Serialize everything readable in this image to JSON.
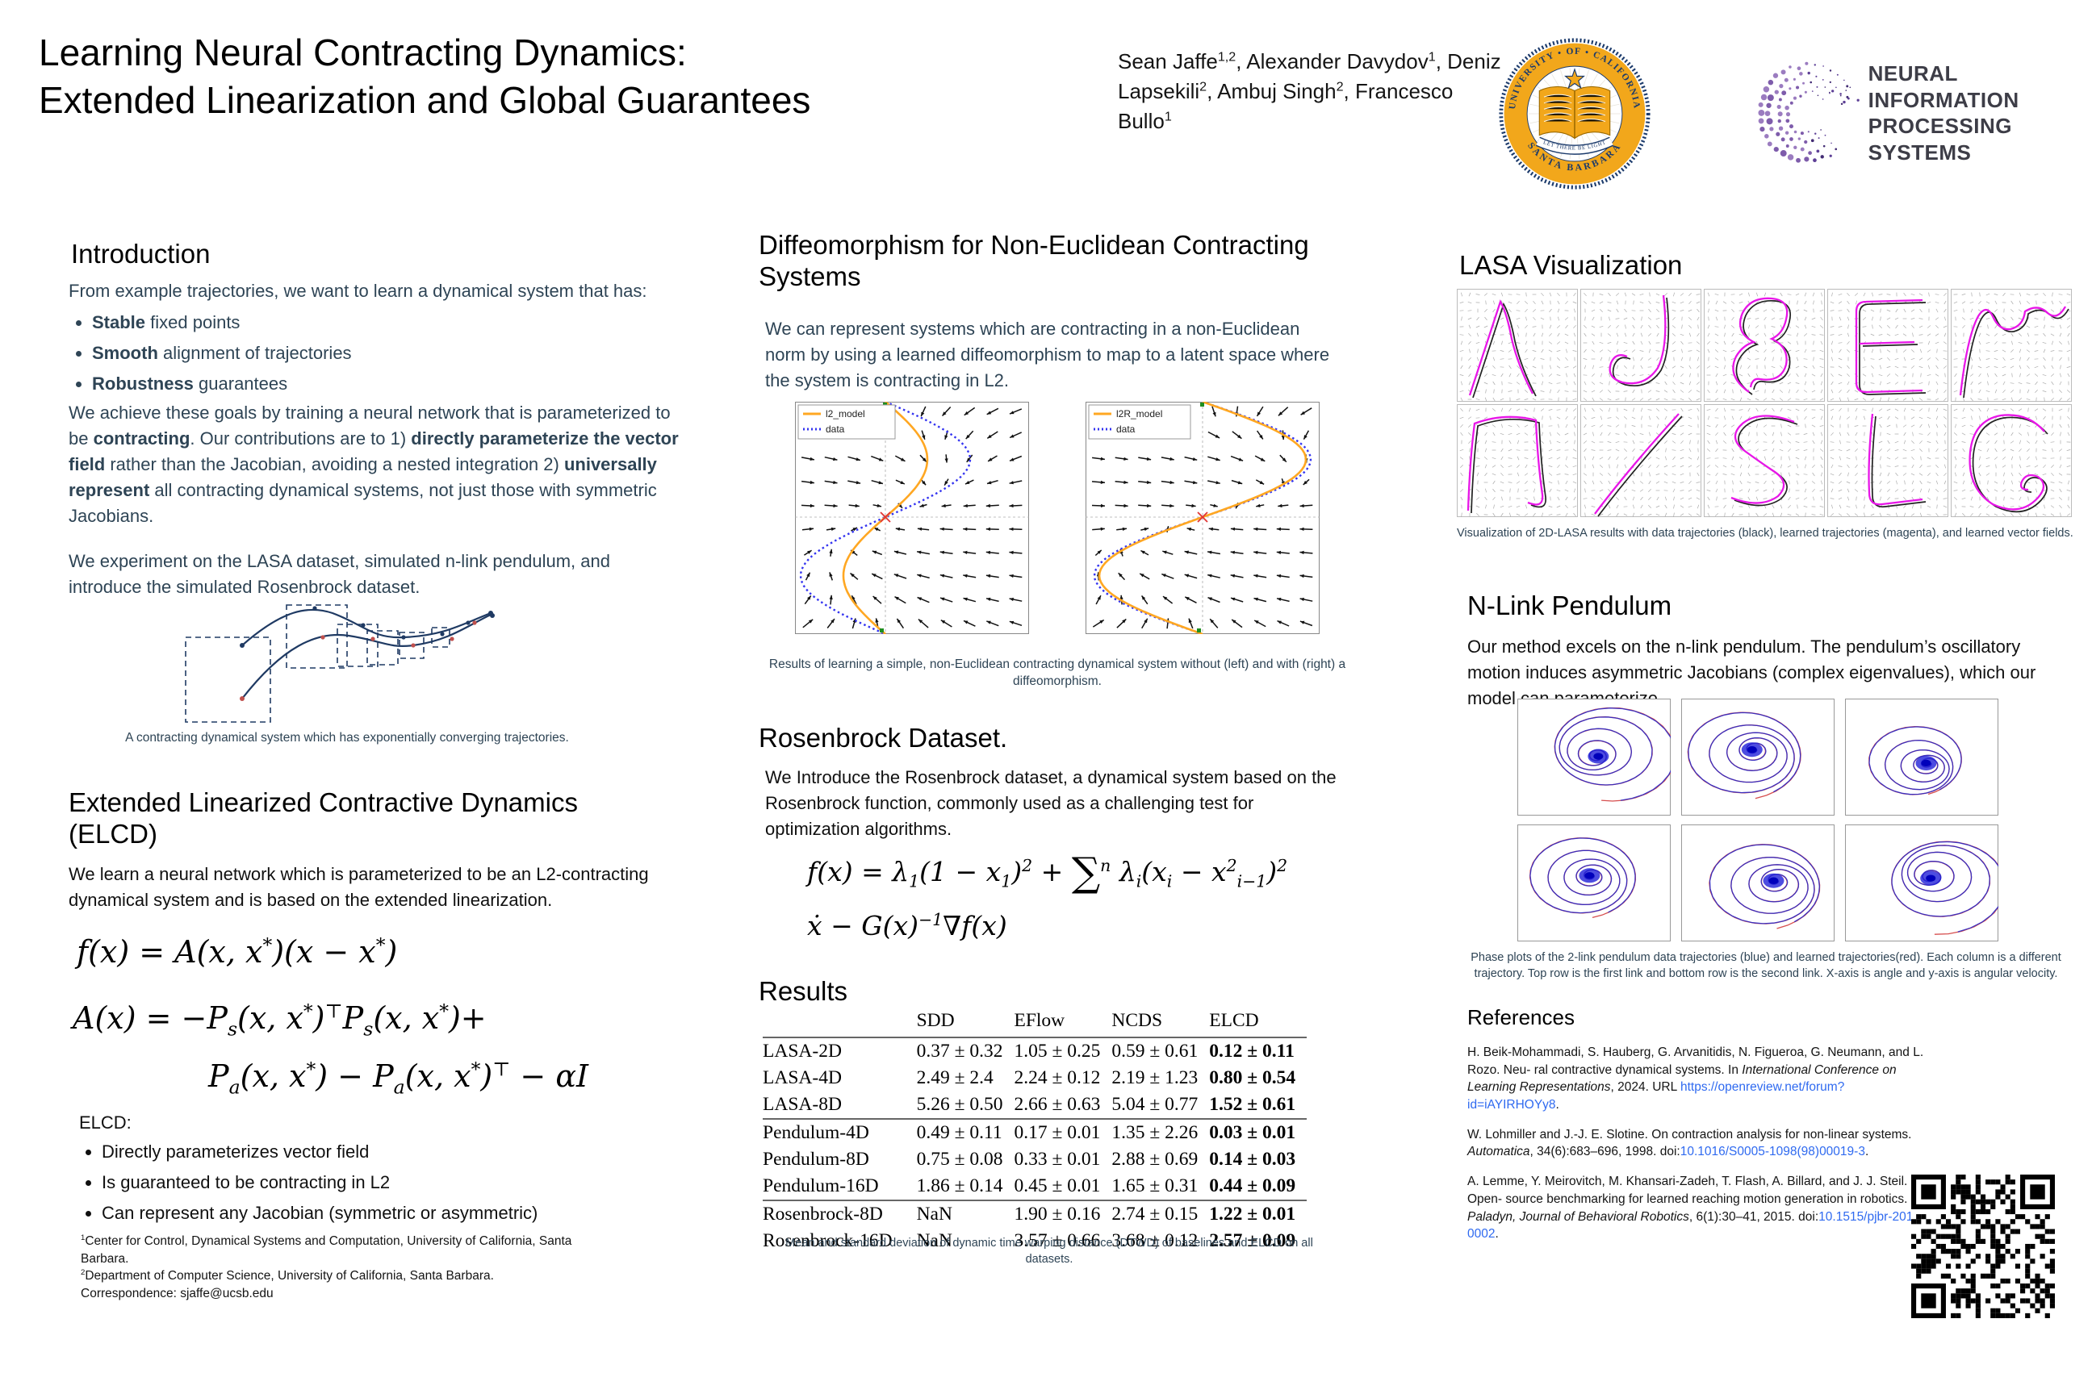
{
  "header": {
    "title1": "Learning Neural Contracting Dynamics:",
    "title2": "Extended Linearization and Global Guarantees",
    "authors": [
      {
        "t": "Sean Jaffe"
      },
      {
        "t": "1,2",
        "s": "sup"
      },
      {
        "t": ", Alexander Davydov"
      },
      {
        "t": "1",
        "s": "sup"
      },
      {
        "t": ", Deniz Lapsekili"
      },
      {
        "t": "2",
        "s": "sup"
      },
      {
        "t": ", Ambuj Singh"
      },
      {
        "t": "2",
        "s": "sup"
      },
      {
        "t": ", Francesco Bullo"
      },
      {
        "t": "1",
        "s": "sup"
      }
    ],
    "seal": {
      "top": "UNIVERSITY • OF • CALIFORNIA",
      "bottom": "SANTA BARBARA",
      "banner": "LET THERE BE LIGHT"
    },
    "neurips": {
      "line1": "NEURAL INFORMATION",
      "line2": "PROCESSING SYSTEMS"
    }
  },
  "colors": {
    "slate_text": "#2e4455",
    "orange_model": "#ffa722",
    "blue_data": "#3434f0",
    "magenta_traj": "#e816e8",
    "pend_blue": "#2929c8",
    "pend_red": "#d23b3b",
    "link_blue": "#2f6af0",
    "navy": "#1b3a6b",
    "gold": "#f2a71b",
    "neurips_purple": "#6b4fa1"
  },
  "intro": {
    "heading": "Introduction",
    "lead": "From example trajectories, we want to learn a dynamical system that has:",
    "bullets": [
      [
        {
          "t": "Stable",
          "s": "b"
        },
        {
          "t": " fixed points"
        }
      ],
      [
        {
          "t": "Smooth",
          "s": "b"
        },
        {
          "t": " alignment of trajectories"
        }
      ],
      [
        {
          "t": "Robustness",
          "s": "b"
        },
        {
          "t": " guarantees"
        }
      ]
    ],
    "para2": [
      {
        "t": "We achieve these goals by training a neural network that is parameterized to be "
      },
      {
        "t": "contracting",
        "s": "b"
      },
      {
        "t": ". Our contributions are to 1) "
      },
      {
        "t": "directly parameterize the vector field",
        "s": "b"
      },
      {
        "t": " rather than the Jacobian, avoiding a nested integration 2) "
      },
      {
        "t": "universally represent",
        "s": "b"
      },
      {
        "t": " all contracting dynamical systems, not just those with symmetric Jacobians."
      }
    ],
    "para3": "We experiment on the LASA dataset, simulated n-link pendulum, and introduce the simulated Rosenbrock dataset.",
    "fig_caption": "A contracting dynamical system which has exponentially converging trajectories."
  },
  "elcd": {
    "heading": "Extended Linearized Contractive Dynamics (ELCD)",
    "body": "We learn a neural network which is parameterized to be an L2-contracting dynamical system and is based on the extended linearization.",
    "eq_f": [
      {
        "t": "f(x) = A(x, x"
      },
      {
        "t": "*",
        "s": "sup"
      },
      {
        "t": ")(x − x"
      },
      {
        "t": "*",
        "s": "sup"
      },
      {
        "t": ")"
      }
    ],
    "eq_a1": [
      {
        "t": "A(x) = −P"
      },
      {
        "t": "s",
        "s": "sub"
      },
      {
        "t": "(x, x"
      },
      {
        "t": "*",
        "s": "sup"
      },
      {
        "t": ")"
      },
      {
        "t": "⊤",
        "s": "sup"
      },
      {
        "t": "P"
      },
      {
        "t": "s",
        "s": "sub"
      },
      {
        "t": "(x, x"
      },
      {
        "t": "*",
        "s": "sup"
      },
      {
        "t": ")+"
      }
    ],
    "eq_a2": [
      {
        "t": "P"
      },
      {
        "t": "a",
        "s": "sub"
      },
      {
        "t": "(x, x"
      },
      {
        "t": "*",
        "s": "sup"
      },
      {
        "t": ") − P"
      },
      {
        "t": "a",
        "s": "sub"
      },
      {
        "t": "(x, x"
      },
      {
        "t": "*",
        "s": "sup"
      },
      {
        "t": ")"
      },
      {
        "t": "⊤",
        "s": "sup"
      },
      {
        "t": " − αI"
      }
    ],
    "label": "ELCD:",
    "bullets": [
      "Directly parameterizes vector field",
      "Is guaranteed to be contracting in L2",
      "Can represent any Jacobian (symmetric or asymmetric)"
    ],
    "footnote1": [
      {
        "t": "1",
        "s": "sup"
      },
      {
        "t": "Center for Control, Dynamical Systems and Computation, University of California, Santa Barbara."
      }
    ],
    "footnote2": [
      {
        "t": "2",
        "s": "sup"
      },
      {
        "t": "Department of Computer Science, University of California, Santa Barbara."
      }
    ],
    "footnote3": "Correspondence: sjaffe@ucsb.edu"
  },
  "diffeo": {
    "heading": "Diffeomorphism for Non-Euclidean Contracting Systems",
    "body": "We can represent systems which are contracting in a non-Euclidean norm by using a learned diffeomorphism to map to a latent space where the system is contracting in L2.",
    "plot_left": {
      "legend_model": "l2_model",
      "legend_data": "data"
    },
    "plot_right": {
      "legend_model": "l2R_model",
      "legend_data": "data"
    },
    "caption": "Results of learning a simple, non-Euclidean contracting dynamical system without (left) and with (right) a diffeomorphism."
  },
  "rosenbrock": {
    "heading": "Rosenbrock Dataset.",
    "body": "We Introduce the Rosenbrock dataset, a dynamical system based on the Rosenbrock function, commonly used as a challenging test for optimization algorithms.",
    "eq1": [
      {
        "t": "f(x) = λ"
      },
      {
        "t": "1",
        "s": "sub"
      },
      {
        "t": "(1 − x"
      },
      {
        "t": "1",
        "s": "sub"
      },
      {
        "t": ")"
      },
      {
        "t": "2",
        "s": "sup"
      },
      {
        "t": " + "
      },
      {
        "t": "∑",
        "s": "sum"
      },
      {
        "t": "n",
        "s": "sup"
      },
      {
        "t": " λ"
      },
      {
        "t": "i",
        "s": "sub"
      },
      {
        "t": "(x"
      },
      {
        "t": "i",
        "s": "sub"
      },
      {
        "t": " − x"
      },
      {
        "t": "2",
        "s": "sup"
      },
      {
        "t": "i−1",
        "s": "sub"
      },
      {
        "t": ")"
      },
      {
        "t": "2",
        "s": "sup"
      }
    ],
    "eq2": [
      {
        "t": "ẋ − G(x)"
      },
      {
        "t": "−1",
        "s": "sup"
      },
      {
        "t": "∇f(x)"
      }
    ]
  },
  "results": {
    "heading": "Results",
    "table": {
      "col_headers": [
        "SDD",
        "EFlow",
        "NCDS",
        "ELCD"
      ],
      "bold_last_col": true,
      "rows": [
        {
          "label": "LASA-2D",
          "cells": [
            "0.37 ± 0.32",
            "1.05 ± 0.25",
            "0.59 ± 0.61",
            "0.12 ± 0.11"
          ]
        },
        {
          "label": "LASA-4D",
          "cells": [
            "2.49 ± 2.4",
            "2.24 ± 0.12",
            "2.19 ± 1.23",
            "0.80 ± 0.54"
          ]
        },
        {
          "label": "LASA-8D",
          "cells": [
            "5.26 ± 0.50",
            "2.66 ± 0.63",
            "5.04 ± 0.77",
            "1.52 ± 0.61"
          ],
          "rule_below": true
        },
        {
          "label": "Pendulum-4D",
          "cells": [
            "0.49 ± 0.11",
            "0.17 ± 0.01",
            "1.35 ± 2.26",
            "0.03 ± 0.01"
          ]
        },
        {
          "label": "Pendulum-8D",
          "cells": [
            "0.75 ± 0.08",
            "0.33 ± 0.01",
            "2.88 ± 0.69",
            "0.14 ± 0.03"
          ]
        },
        {
          "label": "Pendulum-16D",
          "cells": [
            "1.86 ± 0.14",
            "0.45 ± 0.01",
            "1.65 ± 0.31",
            "0.44 ± 0.09"
          ],
          "rule_below": true
        },
        {
          "label": "Rosenbrock-8D",
          "cells": [
            "NaN",
            "1.90 ± 0.16",
            "2.74 ± 0.15",
            "1.22 ± 0.01"
          ]
        },
        {
          "label": "Rosenbrock-16D",
          "cells": [
            "NaN",
            "3.57 ± 0.66",
            "3.68 ± 0.12",
            "2.57 ± 0.09"
          ]
        }
      ]
    },
    "caption": "Mean and standard deviation of dynamic time warping distance (DTWD) of baselines and ELCD on all  datasets."
  },
  "lasa": {
    "heading": "LASA Visualization",
    "caption": "Visualization of 2D-LASA  results with data trajectories (black), learned trajectories (magenta), and learned vector fields."
  },
  "pendulum": {
    "heading": "N-Link Pendulum",
    "body": "Our method excels on the n-link pendulum. The pendulum’s oscillatory motion induces asymmetric Jacobians (complex eigenvalues), which our model can parameterize.",
    "caption": "Phase plots of the 2-link pendulum data trajectories (blue) and learned trajectories(red). Each column is a different trajectory. Top row is the first link and bottom row is the second link. X-axis is angle and y-axis is angular velocity."
  },
  "references": {
    "heading": "References",
    "items": [
      [
        {
          "t": "H. Beik-Mohammadi, S. Hauberg, G. Arvanitidis, N. Figueroa, G. Neumann, and L. Rozo. Neu- ral contractive dynamical systems. In "
        },
        {
          "t": "International Conference on Learning Representations",
          "s": "i"
        },
        {
          "t": ", 2024. URL "
        },
        {
          "t": "https://openreview.net/forum?id=iAYIRHOYy8",
          "s": "link"
        },
        {
          "t": "."
        }
      ],
      [
        {
          "t": "W. Lohmiller and J.-J. E. Slotine. On contraction analysis for non-linear systems. "
        },
        {
          "t": "Automatica",
          "s": "i"
        },
        {
          "t": ", 34(6):683–696, 1998. doi:"
        },
        {
          "t": "10.1016/S0005-1098(98)00019-3",
          "s": "link"
        },
        {
          "t": "."
        }
      ],
      [
        {
          "t": "A. Lemme, Y. Meirovitch, M. Khansari-Zadeh, T. Flash, A. Billard, and J. J. Steil. Open- source benchmarking for learned reaching motion generation in robotics. "
        },
        {
          "t": "Paladyn, Journal of Behavioral Robotics",
          "s": "i"
        },
        {
          "t": ", 6(1):30–41, 2015. doi:"
        },
        {
          "t": "10.1515/pjbr-2015-0002",
          "s": "link"
        },
        {
          "t": "."
        }
      ]
    ]
  }
}
